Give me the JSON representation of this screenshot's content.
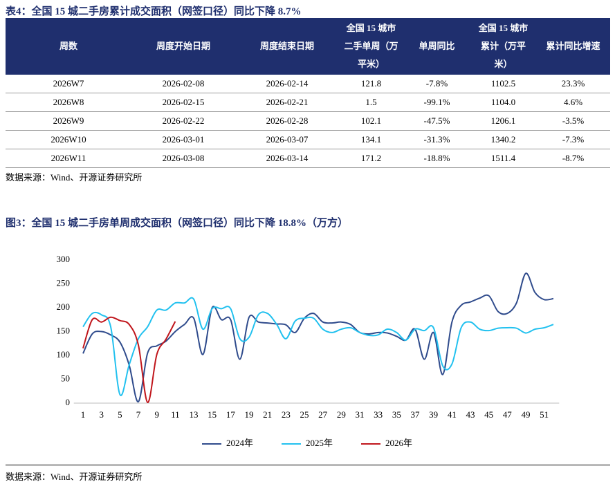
{
  "table": {
    "title": "表4：全国 15 城二手房累计成交面积（网签口径）同比下降 8.7%",
    "header": [
      "周数",
      "周度开始日期",
      "周度结束日期",
      "全国 15 城市二手单周（万平米）",
      "单周同比",
      "全国 15 城市累计（万平米）",
      "累计同比增速"
    ],
    "rows": [
      [
        "2026W7",
        "2026-02-08",
        "2026-02-14",
        "121.8",
        "-7.8%",
        "1102.5",
        "23.3%"
      ],
      [
        "2026W8",
        "2026-02-15",
        "2026-02-21",
        "1.5",
        "-99.1%",
        "1104.0",
        "4.6%"
      ],
      [
        "2026W9",
        "2026-02-22",
        "2026-02-28",
        "102.1",
        "-47.5%",
        "1206.1",
        "-3.5%"
      ],
      [
        "2026W10",
        "2026-03-01",
        "2026-03-07",
        "134.1",
        "-31.3%",
        "1340.2",
        "-7.3%"
      ],
      [
        "2026W11",
        "2026-03-08",
        "2026-03-14",
        "171.2",
        "-18.8%",
        "1511.4",
        "-8.7%"
      ]
    ],
    "source": "数据来源：Wind、开源证券研究所"
  },
  "chart_data": {
    "type": "line",
    "title": "图3：全国 15 城二手房单周成交面积（网签口径）同比下降 18.8%（万方）",
    "x": [
      1,
      2,
      3,
      4,
      5,
      6,
      7,
      8,
      9,
      10,
      11,
      12,
      13,
      14,
      15,
      16,
      17,
      18,
      19,
      20,
      21,
      22,
      23,
      24,
      25,
      26,
      27,
      28,
      29,
      30,
      31,
      32,
      33,
      34,
      35,
      36,
      37,
      38,
      39,
      40,
      41,
      42,
      43,
      44,
      45,
      46,
      47,
      48,
      49,
      50,
      51,
      52
    ],
    "xlim": [
      0,
      53
    ],
    "xticks": [
      1,
      3,
      5,
      7,
      9,
      11,
      13,
      15,
      17,
      19,
      21,
      23,
      25,
      27,
      29,
      31,
      33,
      35,
      37,
      39,
      41,
      43,
      45,
      47,
      49,
      51
    ],
    "ylim": [
      0,
      300
    ],
    "yticks": [
      0,
      50,
      100,
      150,
      200,
      250,
      300
    ],
    "legend": "bottom",
    "series": [
      {
        "name": "2024年",
        "color": "#2f4b8c",
        "values": [
          104,
          145,
          150,
          143,
          128,
          80,
          3,
          105,
          120,
          130,
          150,
          165,
          178,
          102,
          200,
          175,
          175,
          92,
          180,
          170,
          168,
          166,
          164,
          148,
          178,
          188,
          170,
          168,
          170,
          165,
          148,
          145,
          148,
          147,
          140,
          132,
          155,
          92,
          148,
          60,
          170,
          205,
          212,
          220,
          225,
          192,
          188,
          210,
          272,
          232,
          217,
          219
        ]
      },
      {
        "name": "2025年",
        "color": "#22c1ef",
        "values": [
          160,
          188,
          185,
          160,
          18,
          80,
          135,
          160,
          195,
          195,
          210,
          210,
          218,
          155,
          198,
          198,
          198,
          135,
          138,
          185,
          188,
          165,
          135,
          172,
          178,
          178,
          155,
          148,
          155,
          158,
          148,
          142,
          143,
          155,
          148,
          132,
          155,
          152,
          158,
          78,
          82,
          158,
          170,
          155,
          152,
          157,
          158,
          157,
          147,
          155,
          158,
          165
        ]
      },
      {
        "name": "2026年",
        "color": "#c0161c",
        "values": [
          115,
          175,
          170,
          180,
          173,
          165,
          121.8,
          1.5,
          102.1,
          134.1,
          171.2,
          null,
          null,
          null,
          null,
          null,
          null,
          null,
          null,
          null,
          null,
          null,
          null,
          null,
          null,
          null,
          null,
          null,
          null,
          null,
          null,
          null,
          null,
          null,
          null,
          null,
          null,
          null,
          null,
          null,
          null,
          null,
          null,
          null,
          null,
          null,
          null,
          null,
          null,
          null,
          null,
          null
        ]
      }
    ],
    "source": "数据来源：Wind、开源证券研究所"
  }
}
